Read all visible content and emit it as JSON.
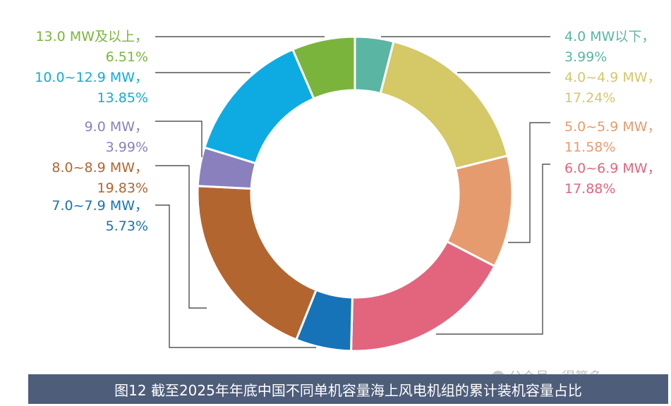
{
  "caption": "图12 截至2025年年底中国不同单机容量海上风电机组的累计装机容量占比",
  "watermark": "公众号 · 得算多",
  "chart_data": {
    "type": "pie",
    "variant": "donut",
    "categories": [
      "4.0 MW以下，",
      "4.0~4.9 MW，",
      "5.0~5.9 MW，",
      "6.0~6.9 MW，",
      "7.0~7.9 MW，",
      "8.0~8.9 MW，",
      "9.0 MW，",
      "10.0~12.9 MW，",
      "13.0 MW及以上，"
    ],
    "values": [
      3.99,
      17.24,
      11.58,
      17.88,
      5.73,
      19.83,
      3.99,
      13.85,
      6.51
    ],
    "value_labels": [
      "3.99%",
      "17.24%",
      "11.58%",
      "17.88%",
      "5.73%",
      "19.83%",
      "3.99%",
      "13.85%",
      "6.51%"
    ],
    "colors": [
      "#5ab5a3",
      "#d4c867",
      "#e69b6f",
      "#e2657d",
      "#1673b8",
      "#b3652f",
      "#8a80bd",
      "#0eabe3",
      "#7bb43c"
    ],
    "unit": "%"
  }
}
